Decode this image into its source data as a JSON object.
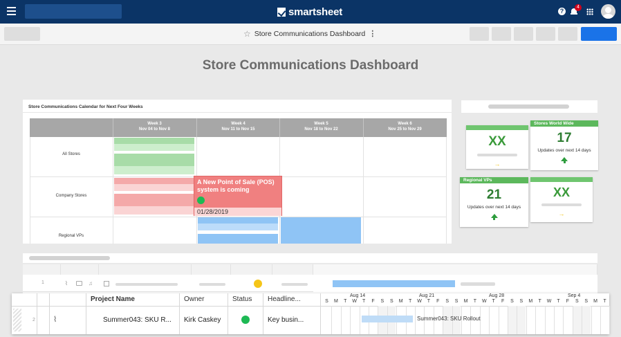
{
  "header": {
    "logo_text": "smartsheet",
    "notification_count": "4",
    "help_glyph": "?"
  },
  "toolbar": {
    "title": "Store Communications Dashboard",
    "star_glyph": "☆",
    "more_glyph": "⋮"
  },
  "dashboard": {
    "title": "Store Communications Dashboard",
    "calendar": {
      "title": "Store Communications Calendar for Next Four Weeks",
      "weeks": [
        {
          "name": "Week 3",
          "range": "Nov 04 to Nov 8"
        },
        {
          "name": "Week 4",
          "range": "Nov 11 to Nov 15"
        },
        {
          "name": "Week 5",
          "range": "Nov 18 to Nov 22"
        },
        {
          "name": "Week 6",
          "range": "Nov 25 to Nov 29"
        }
      ],
      "rows": [
        "All Stores",
        "Company Stores",
        "Regional VPs"
      ],
      "colors": {
        "green": "#a8dca8",
        "green_light": "#cdeecd",
        "red": "#f4a9a9",
        "red_light": "#fad4d4",
        "blue": "#8fc4f5",
        "blue_light": "#bcdcfa"
      },
      "popup": {
        "text": "A New Point of Sale (POS) system is coming",
        "date": "01/28/2019"
      }
    },
    "metrics": [
      {
        "header": "",
        "value": "XX",
        "subtitle": "",
        "trend": "→"
      },
      {
        "header": "Stores World Wide",
        "value": "17",
        "subtitle": "Updates over next 14 days",
        "trend": "up-arrow"
      },
      {
        "header": "Regional VPs",
        "value": "21",
        "subtitle": "Updates over next 14 days",
        "trend": "up-arrow"
      },
      {
        "header": "",
        "value": "XX",
        "subtitle": "",
        "trend": "→"
      }
    ]
  },
  "sheet": {
    "background_row_number": "1",
    "floating": {
      "row_number": "2",
      "headers": [
        "Project Name",
        "Owner",
        "Status",
        "Headline..."
      ],
      "project_name": "Summer043: SKU R...",
      "owner": "Kirk Caskey",
      "headline": "Key busin...",
      "status_color": "#1db954",
      "gantt": {
        "months": [
          "Aug 14",
          "Aug 21",
          "Aug 28",
          "Sep 4"
        ],
        "days": [
          "S",
          "M",
          "T",
          "W",
          "T",
          "F",
          "S",
          "S",
          "M",
          "T",
          "W",
          "T",
          "F",
          "S",
          "S",
          "M",
          "T",
          "W",
          "T",
          "F",
          "S",
          "S",
          "M",
          "T",
          "W",
          "T",
          "F",
          "S",
          "S",
          "M",
          "T"
        ],
        "bar_label": "Summer043: SKU Rollout"
      }
    }
  }
}
